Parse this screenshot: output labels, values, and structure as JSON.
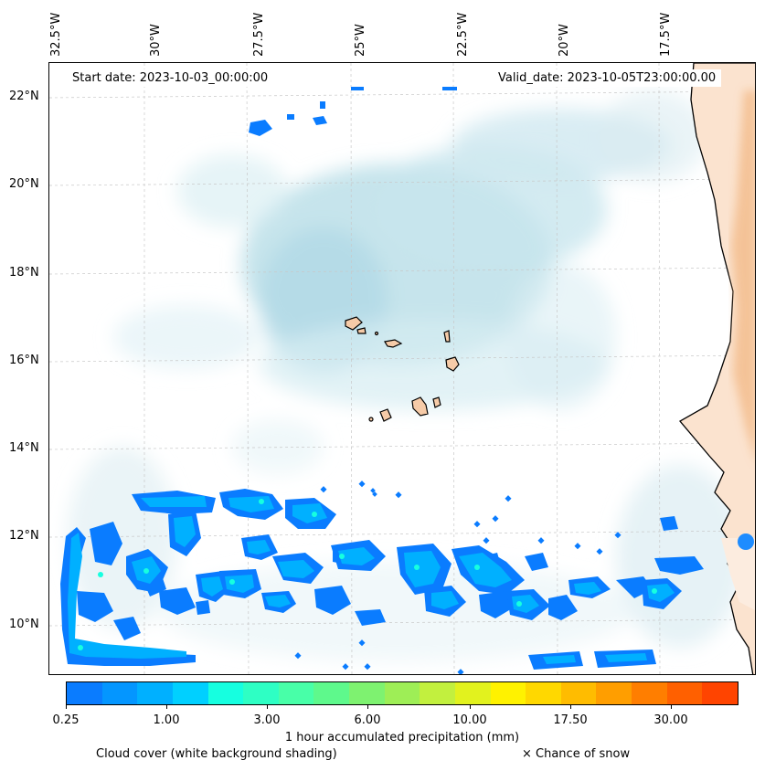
{
  "map": {
    "start_date": "Start date: 2023-10-03_00:00:00",
    "valid_date": "Valid_date: 2023-10-05T23:00:00.00",
    "lon_labels": [
      "32.5°W",
      "30°W",
      "27.5°W",
      "25°W",
      "22.5°W",
      "20°W",
      "17.5°W"
    ],
    "lat_labels": [
      "22°N",
      "20°N",
      "18°N",
      "16°N",
      "14°N",
      "12°N",
      "10°N"
    ]
  },
  "colorbar": {
    "title": "1 hour accumulated precipitation (mm)",
    "ticks": [
      "0.25",
      "1.00",
      "3.00",
      "6.00",
      "10.00",
      "17.50",
      "30.00"
    ],
    "colors": [
      "#0a7cff",
      "#0496ff",
      "#00b0ff",
      "#00d0ff",
      "#16ffe0",
      "#2effc4",
      "#48ffa8",
      "#5ef98c",
      "#7ef270",
      "#9eee56",
      "#c2f03e",
      "#e2f21e",
      "#fff200",
      "#ffd800",
      "#ffbc00",
      "#ff9e00",
      "#ff7e00",
      "#ff6000",
      "#ff4400"
    ]
  },
  "legend": {
    "cloud": "Cloud cover (white background shading)",
    "snow": "× Chance of snow"
  }
}
